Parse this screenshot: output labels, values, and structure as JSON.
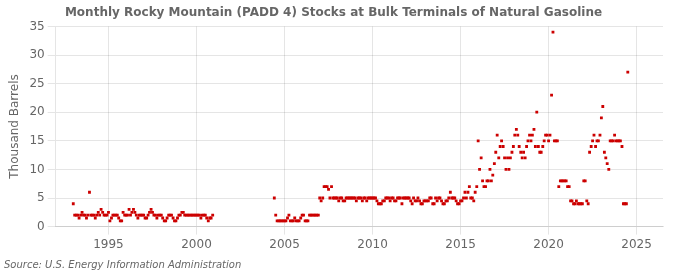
{
  "chart_data": {
    "type": "scatter",
    "title": "Monthly Rocky Mountain (PADD 4) Stocks at Bulk Terminals of Natural Gasoline",
    "ylabel": "Thousand Barrels",
    "source": "Source: U.S. Energy Information Administration",
    "color": "#cc0000",
    "marker": "square",
    "grid": true,
    "xlim": [
      1992.0,
      2026.5
    ],
    "ylim": [
      0,
      35
    ],
    "xticks": [
      1995,
      2000,
      2005,
      2010,
      2015,
      2020,
      2025
    ],
    "yticks": [
      0,
      5,
      10,
      15,
      20,
      25,
      30,
      35
    ],
    "x": [
      1993.0,
      1993.08,
      1993.17,
      1993.25,
      1993.33,
      1993.42,
      1993.5,
      1993.58,
      1993.67,
      1993.75,
      1993.83,
      1993.92,
      1994.0,
      1994.08,
      1994.17,
      1994.25,
      1994.33,
      1994.42,
      1994.5,
      1994.58,
      1994.67,
      1994.75,
      1994.83,
      1994.92,
      1995.0,
      1995.08,
      1995.17,
      1995.25,
      1995.33,
      1995.42,
      1995.5,
      1995.58,
      1995.67,
      1995.75,
      1995.83,
      1995.92,
      1996.0,
      1996.08,
      1996.17,
      1996.25,
      1996.33,
      1996.42,
      1996.5,
      1996.58,
      1996.67,
      1996.75,
      1996.83,
      1996.92,
      1997.0,
      1997.08,
      1997.17,
      1997.25,
      1997.33,
      1997.42,
      1997.5,
      1997.58,
      1997.67,
      1997.75,
      1997.83,
      1997.92,
      1998.0,
      1998.08,
      1998.17,
      1998.25,
      1998.33,
      1998.42,
      1998.5,
      1998.58,
      1998.67,
      1998.75,
      1998.83,
      1998.92,
      1999.0,
      1999.08,
      1999.17,
      1999.25,
      1999.33,
      1999.42,
      1999.5,
      1999.58,
      1999.67,
      1999.75,
      1999.83,
      1999.92,
      2000.0,
      2000.08,
      2000.17,
      2000.25,
      2000.33,
      2000.42,
      2000.5,
      2000.58,
      2000.67,
      2000.75,
      2000.83,
      2000.92,
      2004.42,
      2004.5,
      2004.58,
      2004.67,
      2004.75,
      2004.83,
      2004.92,
      2005.0,
      2005.08,
      2005.17,
      2005.25,
      2005.33,
      2005.42,
      2005.5,
      2005.58,
      2005.67,
      2005.75,
      2005.83,
      2005.92,
      2006.0,
      2006.08,
      2006.17,
      2006.25,
      2006.33,
      2006.42,
      2006.5,
      2006.58,
      2006.67,
      2006.75,
      2006.83,
      2006.92,
      2007.0,
      2007.08,
      2007.17,
      2007.25,
      2007.33,
      2007.42,
      2007.5,
      2007.58,
      2007.67,
      2007.75,
      2007.83,
      2007.92,
      2008.0,
      2008.08,
      2008.17,
      2008.25,
      2008.33,
      2008.42,
      2008.5,
      2008.58,
      2008.67,
      2008.75,
      2008.83,
      2008.92,
      2009.0,
      2009.08,
      2009.17,
      2009.25,
      2009.33,
      2009.42,
      2009.5,
      2009.58,
      2009.67,
      2009.75,
      2009.83,
      2009.92,
      2010.0,
      2010.08,
      2010.17,
      2010.25,
      2010.33,
      2010.42,
      2010.5,
      2010.58,
      2010.67,
      2010.75,
      2010.83,
      2010.92,
      2011.0,
      2011.08,
      2011.17,
      2011.25,
      2011.33,
      2011.42,
      2011.5,
      2011.58,
      2011.67,
      2011.75,
      2011.83,
      2011.92,
      2012.0,
      2012.08,
      2012.17,
      2012.25,
      2012.33,
      2012.42,
      2012.5,
      2012.58,
      2012.67,
      2012.75,
      2012.83,
      2012.92,
      2013.0,
      2013.08,
      2013.17,
      2013.25,
      2013.33,
      2013.42,
      2013.5,
      2013.58,
      2013.67,
      2013.75,
      2013.83,
      2013.92,
      2014.0,
      2014.08,
      2014.17,
      2014.25,
      2014.33,
      2014.42,
      2014.5,
      2014.58,
      2014.67,
      2014.75,
      2014.83,
      2014.92,
      2015.0,
      2015.08,
      2015.17,
      2015.25,
      2015.33,
      2015.42,
      2015.5,
      2015.58,
      2015.67,
      2015.75,
      2015.83,
      2015.92,
      2016.0,
      2016.08,
      2016.17,
      2016.25,
      2016.33,
      2016.42,
      2016.5,
      2016.58,
      2016.67,
      2016.75,
      2016.83,
      2016.92,
      2017.0,
      2017.08,
      2017.17,
      2017.25,
      2017.33,
      2017.42,
      2017.5,
      2017.58,
      2017.67,
      2017.75,
      2017.83,
      2017.92,
      2018.0,
      2018.08,
      2018.17,
      2018.25,
      2018.33,
      2018.42,
      2018.5,
      2018.58,
      2018.67,
      2018.75,
      2018.83,
      2018.92,
      2019.0,
      2019.08,
      2019.17,
      2019.25,
      2019.33,
      2019.42,
      2019.5,
      2019.58,
      2019.67,
      2019.75,
      2019.83,
      2019.92,
      2020.0,
      2020.08,
      2020.17,
      2020.25,
      2020.33,
      2020.42,
      2020.5,
      2020.58,
      2020.67,
      2020.75,
      2020.83,
      2020.92,
      2021.0,
      2021.08,
      2021.17,
      2021.25,
      2021.33,
      2021.42,
      2021.5,
      2021.58,
      2021.67,
      2021.75,
      2021.83,
      2021.92,
      2022.0,
      2022.08,
      2022.17,
      2022.25,
      2022.33,
      2022.42,
      2022.5,
      2022.58,
      2022.67,
      2022.75,
      2022.83,
      2022.92,
      2023.0,
      2023.08,
      2023.17,
      2023.25,
      2023.33,
      2023.42,
      2023.5,
      2023.58,
      2023.67,
      2023.75,
      2023.83,
      2023.92,
      2024.0,
      2024.08,
      2024.17,
      2024.25,
      2024.33,
      2024.42,
      2024.5
    ],
    "values": [
      4.0,
      2.0,
      2.0,
      2.0,
      1.5,
      2.0,
      2.5,
      2.0,
      2.0,
      1.5,
      2.0,
      6.0,
      2.0,
      2.0,
      2.0,
      1.5,
      2.0,
      2.5,
      2.0,
      3.0,
      2.5,
      2.0,
      2.0,
      2.0,
      2.5,
      1.0,
      1.5,
      2.0,
      2.0,
      2.0,
      2.0,
      1.5,
      1.0,
      1.0,
      2.5,
      2.0,
      2.0,
      2.0,
      3.0,
      2.0,
      2.5,
      3.0,
      2.5,
      2.0,
      1.5,
      2.0,
      2.0,
      2.0,
      2.0,
      1.5,
      1.5,
      2.0,
      2.5,
      3.0,
      2.5,
      2.0,
      2.0,
      1.5,
      2.0,
      2.0,
      2.0,
      1.5,
      1.0,
      1.0,
      1.5,
      2.0,
      2.0,
      2.0,
      1.5,
      1.0,
      1.0,
      1.5,
      2.0,
      2.0,
      2.5,
      2.5,
      2.0,
      2.0,
      2.0,
      2.0,
      2.0,
      2.0,
      2.0,
      2.0,
      2.0,
      2.0,
      2.0,
      1.5,
      2.0,
      2.0,
      2.0,
      1.5,
      1.0,
      1.5,
      1.5,
      2.0,
      5.0,
      2.0,
      1.0,
      1.0,
      1.0,
      1.0,
      1.0,
      1.0,
      1.0,
      1.5,
      2.0,
      1.0,
      1.0,
      1.0,
      1.5,
      1.0,
      1.0,
      1.0,
      1.5,
      2.0,
      2.0,
      1.0,
      1.0,
      1.0,
      2.0,
      2.0,
      2.0,
      2.0,
      2.0,
      2.0,
      2.0,
      5.0,
      4.5,
      5.0,
      7.0,
      7.0,
      7.0,
      6.5,
      5.0,
      7.0,
      5.0,
      5.0,
      5.0,
      5.0,
      4.5,
      5.0,
      5.0,
      4.5,
      4.5,
      5.0,
      5.0,
      5.0,
      5.0,
      5.0,
      5.0,
      5.0,
      4.5,
      5.0,
      5.0,
      5.0,
      4.5,
      5.0,
      5.0,
      4.5,
      5.0,
      5.0,
      5.0,
      5.0,
      5.0,
      5.0,
      4.5,
      4.0,
      4.0,
      4.0,
      4.5,
      4.5,
      5.0,
      5.0,
      5.0,
      4.5,
      5.0,
      5.0,
      4.5,
      4.5,
      5.0,
      5.0,
      5.0,
      4.0,
      5.0,
      5.0,
      5.0,
      5.0,
      5.0,
      4.5,
      4.0,
      5.0,
      4.5,
      4.5,
      5.0,
      4.5,
      4.0,
      4.0,
      4.5,
      4.5,
      4.5,
      4.5,
      5.0,
      5.0,
      4.0,
      4.0,
      5.0,
      4.5,
      5.0,
      5.0,
      4.5,
      4.0,
      4.0,
      4.5,
      4.5,
      5.0,
      6.0,
      5.0,
      5.0,
      5.0,
      4.5,
      4.0,
      4.0,
      4.5,
      4.5,
      5.0,
      6.0,
      5.0,
      6.0,
      7.0,
      5.0,
      5.0,
      4.5,
      6.0,
      7.0,
      15.0,
      10.0,
      12.0,
      8.0,
      7.0,
      7.0,
      8.0,
      8.0,
      10.0,
      8.0,
      9.0,
      11.0,
      13.0,
      16.0,
      12.0,
      14.0,
      15.0,
      14.0,
      12.0,
      10.0,
      12.0,
      10.0,
      12.0,
      13.0,
      14.0,
      16.0,
      17.0,
      16.0,
      14.0,
      13.0,
      12.0,
      13.0,
      12.0,
      14.0,
      15.0,
      16.0,
      15.0,
      16.0,
      17.0,
      14.0,
      20.0,
      14.0,
      13.0,
      13.0,
      14.0,
      15.0,
      16.0,
      16.0,
      15.0,
      16.0,
      23.0,
      34.0,
      15.0,
      15.0,
      15.0,
      7.0,
      8.0,
      8.0,
      8.0,
      8.0,
      8.0,
      7.0,
      7.0,
      4.5,
      4.5,
      4.0,
      4.0,
      4.5,
      4.0,
      4.0,
      4.0,
      4.0,
      8.0,
      8.0,
      4.5,
      4.0,
      13.0,
      14.0,
      15.0,
      16.0,
      14.0,
      15.0,
      15.0,
      16.0,
      19.0,
      21.0,
      13.0,
      12.0,
      11.0,
      10.0,
      15.0,
      15.0,
      15.0,
      16.0,
      15.0,
      15.0,
      15.0,
      15.0,
      14.0,
      4.0,
      4.0,
      4.0,
      27.0
    ]
  }
}
